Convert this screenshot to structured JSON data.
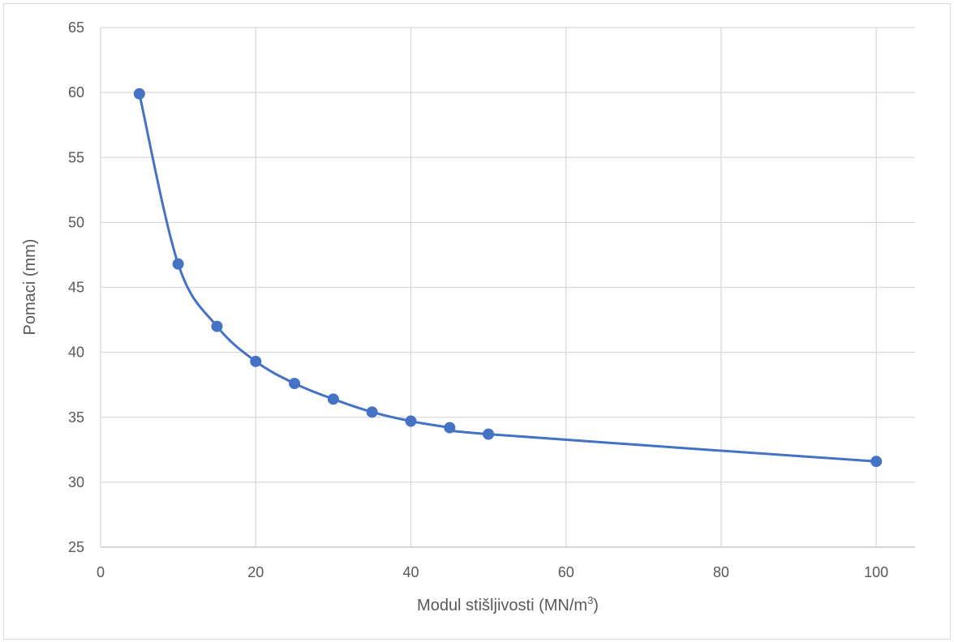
{
  "chart_data": {
    "type": "scatter",
    "title": "",
    "xlabel": "Modul stišljivosti (MN/m",
    "xlabel_sup": "3",
    "xlabel_suffix": ")",
    "ylabel": "Pomaci (mm)",
    "xlim": [
      0,
      105
    ],
    "ylim": [
      25,
      65
    ],
    "xticks": [
      0,
      20,
      40,
      60,
      80,
      100
    ],
    "yticks": [
      25,
      30,
      35,
      40,
      45,
      50,
      55,
      60,
      65
    ],
    "grid": true,
    "legend": "none",
    "line_style": "smooth-with-markers",
    "series": [
      {
        "color": "#4472c4",
        "x": [
          5,
          10,
          15,
          20,
          25,
          30,
          35,
          40,
          45,
          50,
          100
        ],
        "y": [
          59.9,
          46.8,
          42.0,
          39.3,
          37.6,
          36.4,
          35.4,
          34.7,
          34.2,
          33.7,
          31.6
        ]
      }
    ]
  }
}
